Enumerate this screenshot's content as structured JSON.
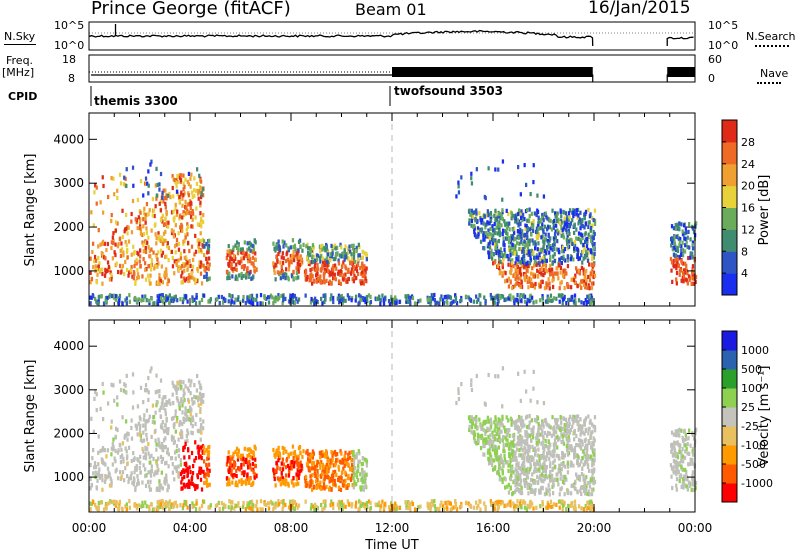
{
  "header": {
    "station": "Prince George (fitACF)",
    "beam": "Beam 01",
    "date": "16/Jan/2015"
  },
  "summary": {
    "nsky_label": "N.Sky",
    "nsky_ticks": [
      "10^5",
      "10^0"
    ],
    "nsearch_label": "N.Search",
    "nsearch_ticks": [
      "10^5",
      "10^0"
    ],
    "freq_label_line1": "Freq.",
    "freq_label_line2": "[MHz]",
    "freq_ticks": [
      "18",
      "8"
    ],
    "nave_label": "Nave",
    "nave_ticks": [
      "60",
      "0"
    ],
    "cpid_label": "CPID",
    "cpid_segments": [
      {
        "name": "themis",
        "code": "3300",
        "start_h": 0
      },
      {
        "name": "twofsound",
        "code": "3503",
        "start_h": 12
      }
    ]
  },
  "chart_data": [
    {
      "type": "heatmap",
      "title": "Power",
      "xlabel": "",
      "ylabel": "Slant Range [km]",
      "x_ticks": [
        "00:00",
        "04:00",
        "08:00",
        "12:00",
        "16:00",
        "20:00",
        "00:00"
      ],
      "x_range_h": [
        0,
        24
      ],
      "y_ticks": [
        "1000",
        "2000",
        "3000",
        "4000"
      ],
      "y_range_km": [
        200,
        4600
      ],
      "colorbar": {
        "label": "Power [dB]",
        "ticks": [
          "4",
          "8",
          "12",
          "16",
          "20",
          "24",
          "28"
        ],
        "range": [
          0,
          32
        ]
      }
    },
    {
      "type": "heatmap",
      "title": "Velocity",
      "xlabel": "Time UT",
      "ylabel": "Slant Range [km]",
      "x_ticks": [
        "00:00",
        "04:00",
        "08:00",
        "12:00",
        "16:00",
        "20:00",
        "00:00"
      ],
      "x_range_h": [
        0,
        24
      ],
      "y_ticks": [
        "1000",
        "2000",
        "3000",
        "4000"
      ],
      "y_range_km": [
        200,
        4600
      ],
      "colorbar": {
        "label": "Velocity [m s⁻¹]",
        "ticks": [
          "-1000",
          "-500",
          "-100",
          "-25",
          "25",
          "100",
          "500",
          "1000"
        ]
      }
    }
  ],
  "colors": {
    "power_scale": [
      "#1a2ef0",
      "#2f55c4",
      "#3f8c70",
      "#6aac5c",
      "#e8d23a",
      "#f0a030",
      "#ee6a25",
      "#e02a18"
    ],
    "velocity_scale": [
      "#ff0000",
      "#ff5a00",
      "#ff9a00",
      "#e8c060",
      "#c4c4bc",
      "#8ed050",
      "#2aa02a",
      "#2a62b0",
      "#1a1ae0"
    ],
    "ground_scatter": "#c0c0ba"
  }
}
